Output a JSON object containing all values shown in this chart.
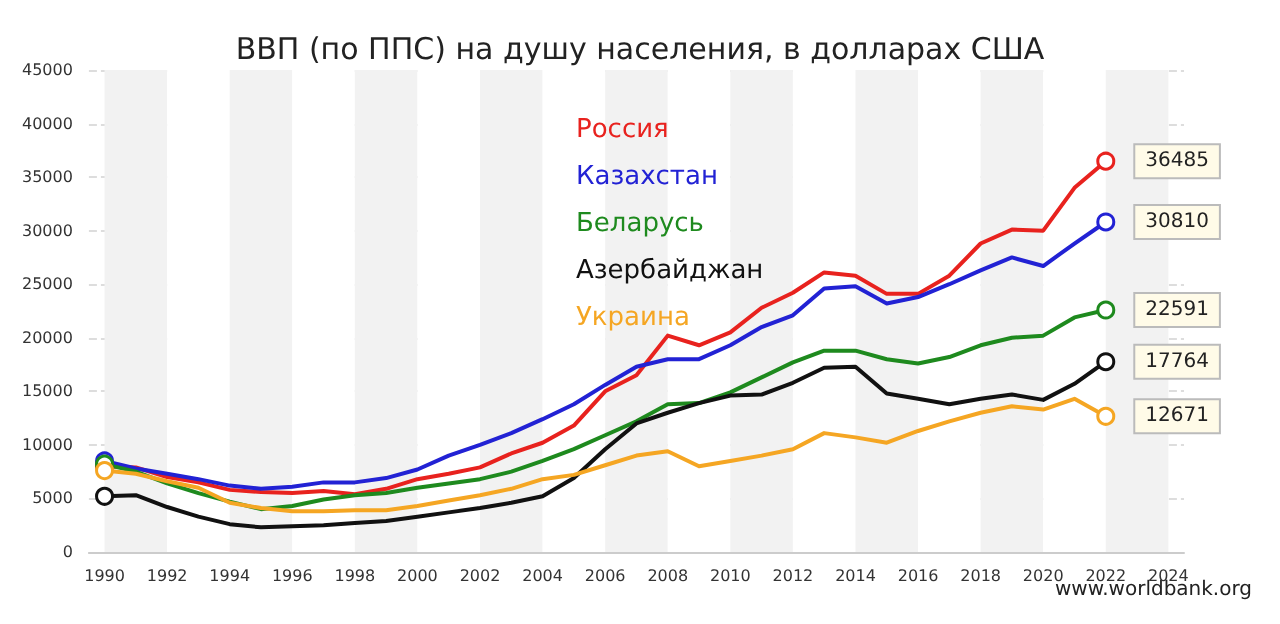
{
  "chart_data": {
    "type": "line",
    "title": "ВВП (по ППС) на душу населения, в долларах США",
    "x": [
      1990,
      1991,
      1992,
      1993,
      1994,
      1995,
      1996,
      1997,
      1998,
      1999,
      2000,
      2001,
      2002,
      2003,
      2004,
      2005,
      2006,
      2007,
      2008,
      2009,
      2010,
      2011,
      2012,
      2013,
      2014,
      2015,
      2016,
      2017,
      2018,
      2019,
      2020,
      2021,
      2022
    ],
    "series": [
      {
        "name": "Россия",
        "color": "#e8221e",
        "values": [
          8000,
          7900,
          7000,
          6500,
          5800,
          5600,
          5500,
          5700,
          5400,
          5900,
          6800,
          7300,
          7900,
          9200,
          10200,
          11800,
          15000,
          16500,
          20200,
          19300,
          20500,
          22800,
          24200,
          26100,
          25800,
          24100,
          24100,
          25800,
          28800,
          30100,
          30000,
          34000,
          36485
        ],
        "value_labels": [
          null,
          null,
          null,
          null,
          null,
          null,
          null,
          null,
          null,
          null,
          null,
          null,
          null,
          null,
          null,
          null,
          null,
          null,
          null,
          null,
          null,
          null,
          null,
          null,
          null,
          null,
          null,
          null,
          null,
          null,
          null,
          null,
          "36485"
        ]
      },
      {
        "name": "Казахстан",
        "color": "#2222d4",
        "values": [
          8500,
          7800,
          7300,
          6800,
          6200,
          5900,
          6100,
          6500,
          6500,
          6900,
          7700,
          9000,
          10000,
          11100,
          12400,
          13800,
          15600,
          17300,
          18000,
          18000,
          19300,
          21000,
          22100,
          24600,
          24800,
          23200,
          23800,
          25000,
          26300,
          27500,
          26700,
          28800,
          30810
        ],
        "value_labels": [
          null,
          null,
          null,
          null,
          null,
          null,
          null,
          null,
          null,
          null,
          null,
          null,
          null,
          null,
          null,
          null,
          null,
          null,
          null,
          null,
          null,
          null,
          null,
          null,
          null,
          null,
          null,
          null,
          null,
          null,
          null,
          null,
          "30810"
        ]
      },
      {
        "name": "Беларусь",
        "color": "#1e8a1e",
        "values": [
          8200,
          7500,
          6400,
          5500,
          4700,
          4000,
          4300,
          4900,
          5300,
          5500,
          6000,
          6400,
          6800,
          7500,
          8500,
          9600,
          10900,
          12200,
          13800,
          13900,
          14900,
          16300,
          17700,
          18800,
          18800,
          18000,
          17600,
          18200,
          19300,
          20000,
          20200,
          21900,
          22591
        ],
        "value_labels": [
          null,
          null,
          null,
          null,
          null,
          null,
          null,
          null,
          null,
          null,
          null,
          null,
          null,
          null,
          null,
          null,
          null,
          null,
          null,
          null,
          null,
          null,
          null,
          null,
          null,
          null,
          null,
          null,
          null,
          null,
          null,
          null,
          "22591"
        ]
      },
      {
        "name": "Азербайджан",
        "color": "#111111",
        "values": [
          5200,
          5300,
          4200,
          3300,
          2600,
          2300,
          2400,
          2500,
          2700,
          2900,
          3300,
          3700,
          4100,
          4600,
          5200,
          6900,
          9600,
          12000,
          13000,
          13900,
          14600,
          14700,
          15800,
          17200,
          17300,
          14800,
          14300,
          13800,
          14300,
          14700,
          14200,
          15700,
          17764
        ],
        "value_labels": [
          null,
          null,
          null,
          null,
          null,
          null,
          null,
          null,
          null,
          null,
          null,
          null,
          null,
          null,
          null,
          null,
          null,
          null,
          null,
          null,
          null,
          null,
          null,
          null,
          null,
          null,
          null,
          null,
          null,
          null,
          null,
          null,
          "17764"
        ]
      },
      {
        "name": "Украина",
        "color": "#f5a623",
        "values": [
          7600,
          7300,
          6600,
          6000,
          4600,
          4100,
          3800,
          3800,
          3900,
          3900,
          4300,
          4800,
          5300,
          5900,
          6800,
          7200,
          8100,
          9000,
          9400,
          8000,
          8500,
          9000,
          9600,
          11100,
          10700,
          10200,
          11300,
          12200,
          13000,
          13600,
          13300,
          14300,
          12671
        ],
        "value_labels": [
          null,
          null,
          null,
          null,
          null,
          null,
          null,
          null,
          null,
          null,
          null,
          null,
          null,
          null,
          null,
          null,
          null,
          null,
          null,
          null,
          null,
          null,
          null,
          null,
          null,
          null,
          null,
          null,
          null,
          null,
          null,
          null,
          "12671"
        ]
      }
    ],
    "xlim": [
      1989.5,
      2024.5
    ],
    "xticks": [
      1990,
      1992,
      1994,
      1996,
      1998,
      2000,
      2002,
      2004,
      2006,
      2008,
      2010,
      2012,
      2014,
      2016,
      2018,
      2020,
      2022,
      2024
    ],
    "ylim": [
      0,
      45000
    ],
    "yticks": [
      0,
      5000,
      10000,
      15000,
      20000,
      25000,
      30000,
      35000,
      40000,
      45000
    ],
    "grid": "y",
    "legend": "top",
    "line_style": "solid",
    "annotations": [
      "www.worldbank.org"
    ]
  }
}
